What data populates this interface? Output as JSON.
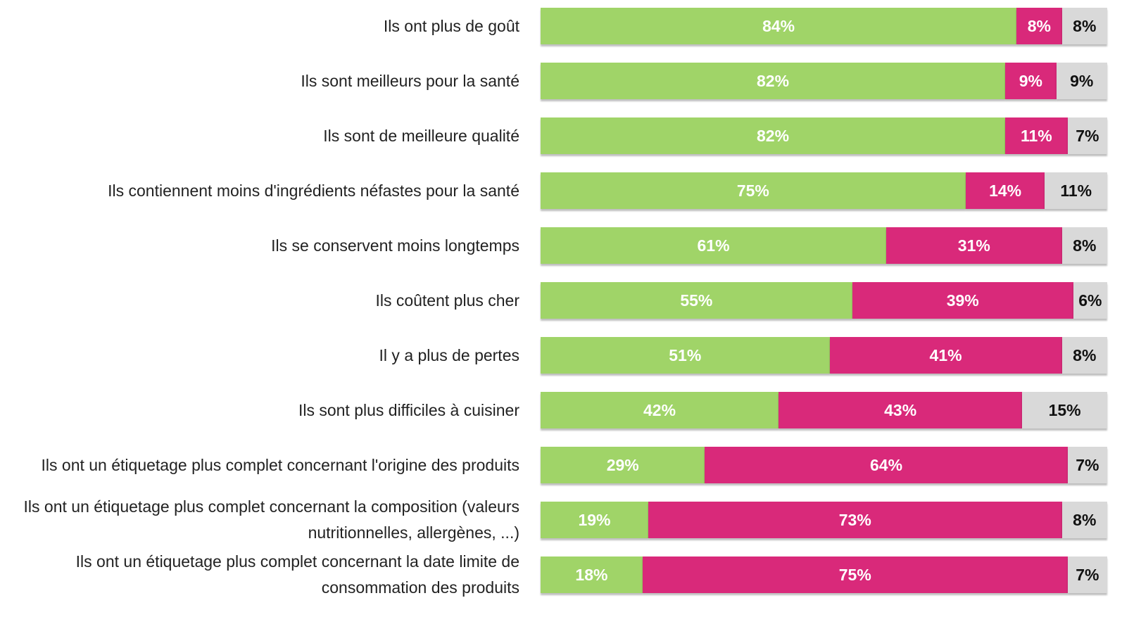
{
  "chart_data": {
    "type": "stacked-bar-horizontal",
    "categories": [
      "Ils ont plus de goût",
      "Ils sont meilleurs pour la santé",
      "Ils sont de meilleure qualité",
      "Ils contiennent moins d'ingrédients néfastes pour la santé",
      "Ils se conservent moins longtemps",
      "Ils coûtent plus cher",
      "Il y a plus de pertes",
      "Ils sont plus difficiles à cuisiner",
      "Ils ont un étiquetage plus complet concernant l'origine des produits",
      "Ils ont un étiquetage plus complet concernant la composition (valeurs nutritionnelles, allergènes, ...)",
      "Ils ont un étiquetage plus complet concernant la date limite de consommation des produits"
    ],
    "xlim": [
      0,
      100
    ],
    "series": [
      {
        "color": "#a0d468",
        "values": [
          84,
          82,
          82,
          75,
          61,
          55,
          51,
          42,
          29,
          19,
          18
        ],
        "value_labels": [
          "84%",
          "82%",
          "82%",
          "75%",
          "61%",
          "55%",
          "51%",
          "42%",
          "29%",
          "19%",
          "18%"
        ]
      },
      {
        "color": "#d9297a",
        "values": [
          8,
          9,
          11,
          14,
          31,
          39,
          41,
          43,
          64,
          73,
          75
        ],
        "value_labels": [
          "8%",
          "9%",
          "11%",
          "14%",
          "31%",
          "39%",
          "41%",
          "43%",
          "64%",
          "73%",
          "75%"
        ]
      },
      {
        "color": "#d9d9d9",
        "values": [
          8,
          9,
          7,
          11,
          8,
          6,
          8,
          15,
          7,
          8,
          7
        ],
        "value_labels": [
          "8%",
          "9%",
          "7%",
          "11%",
          "8%",
          "6%",
          "8%",
          "15%",
          "7%",
          "8%",
          "7%"
        ]
      }
    ]
  }
}
